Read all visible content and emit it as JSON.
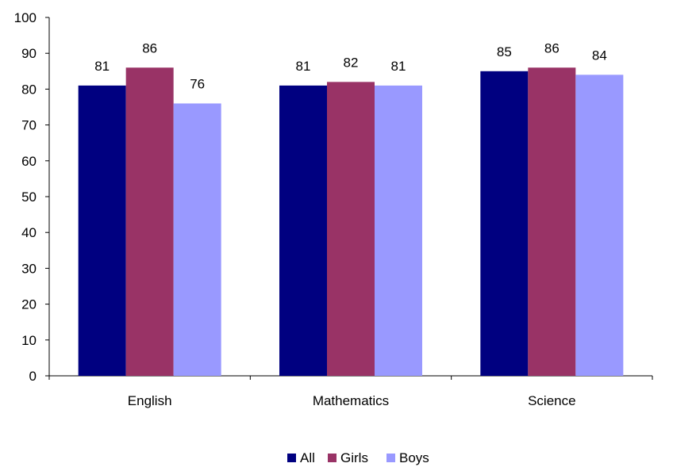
{
  "chart_data": {
    "type": "bar",
    "categories": [
      "English",
      "Mathematics",
      "Science"
    ],
    "series": [
      {
        "name": "All",
        "values": [
          81,
          81,
          85
        ],
        "color": "#000080"
      },
      {
        "name": "Girls",
        "values": [
          86,
          82,
          86
        ],
        "color": "#993366"
      },
      {
        "name": "Boys",
        "values": [
          76,
          81,
          84
        ],
        "color": "#9999FF"
      }
    ],
    "data_labels": [
      [
        "81",
        "81",
        "85"
      ],
      [
        "86",
        "82",
        "86"
      ],
      [
        "76",
        "81",
        "84"
      ]
    ],
    "title": "",
    "xlabel": "",
    "ylabel": "",
    "ylim": [
      0,
      100
    ],
    "yticks": [
      "0",
      "10",
      "20",
      "30",
      "40",
      "50",
      "60",
      "70",
      "80",
      "90",
      "100"
    ],
    "grid": false,
    "legend_position": "bottom"
  }
}
